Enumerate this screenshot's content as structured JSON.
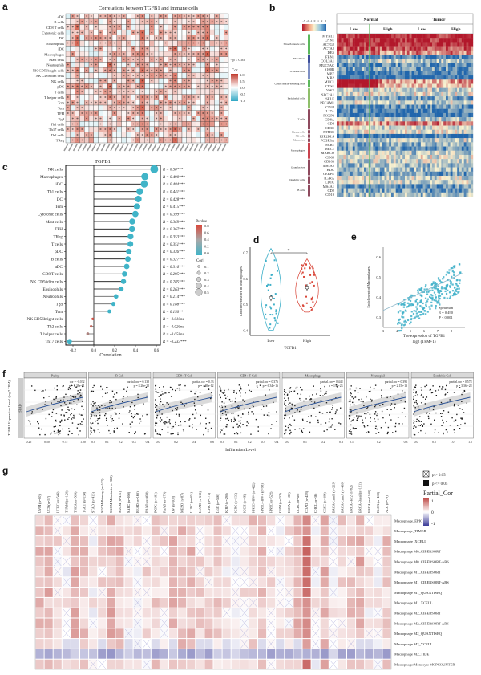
{
  "panel_labels": [
    "a",
    "b",
    "c",
    "d",
    "e",
    "f",
    "g"
  ],
  "colors": {
    "pos": "#d6604d",
    "neg": "#4bb4cc",
    "cyan": "#3fb0c9",
    "red": "#d9473a",
    "navy": "#3b3b98"
  },
  "chart_data": [
    {
      "id": "a",
      "type": "heatmap",
      "title": "Correlations between TGFB1 and immune cells",
      "rows": [
        "aDC",
        "B cells",
        "CD8 T cells",
        "Cytotoxic cells",
        "DC",
        "Eosinophils",
        "iDC",
        "Macrophages",
        "Mast cells",
        "Neutrophils",
        "NK CD56bright cells",
        "NK CD56dim cells",
        "NK cells",
        "pDC",
        "T cells",
        "T helper cells",
        "Tcm",
        "Tem",
        "TFH",
        "Tgd",
        "Th1 cells",
        "Th17 cells",
        "Th2 cells",
        "TReg"
      ],
      "n_columns": 35,
      "legend": {
        "sig": "* p < 0.05",
        "title": "Cor",
        "ticks": [
          "1.0",
          "0.5",
          "0.0",
          "-0.5",
          "-1.0"
        ]
      }
    },
    {
      "id": "b",
      "type": "heatmap",
      "col_groups": [
        "Normal",
        "Tumor"
      ],
      "col_subgroups": [
        "Low",
        "High",
        "Low",
        "High"
      ],
      "genes": [
        "MYH11",
        "CNN1",
        "ACTG2",
        "ACTA2",
        "DES",
        "FBN1",
        "COL3A1",
        "MUC5AC",
        "S100B",
        "MPZ",
        "MBP",
        "MUC1",
        "CKS1",
        "VWF",
        "SLC2A1",
        "SELE",
        "PECAM1",
        "CD34",
        "IL17A",
        "FOXP3",
        "CD8A",
        "CD4",
        "CD3E",
        "PTPRC",
        "KIR2DL4",
        "FCGR3A",
        "NCR1",
        "MRC1",
        "MARCO",
        "CD68",
        "CD163",
        "MS4A2",
        "HDC",
        "CEBPE",
        "IL3RA",
        "CD1C",
        "MS4A1",
        "CD2",
        "CD19"
      ],
      "groups": [
        {
          "name": "Smooth muscle cells",
          "n": 5,
          "color": "#5cb85c"
        },
        {
          "name": "Fibroblasts",
          "n": 2,
          "color": "#3d4f9a"
        },
        {
          "name": "Schwann cells",
          "n": 4,
          "color": "#7e8fc4"
        },
        {
          "name": "Gastric mucus-secreting cells",
          "n": 2,
          "color": "#5cb85c"
        },
        {
          "name": "Endothelial cells",
          "n": 5,
          "color": "#8fbf6b"
        },
        {
          "name": "T cells",
          "n": 5,
          "color": "#8e4a5e"
        },
        {
          "name": "Plasma cells",
          "n": 1,
          "color": "#8e4a5e"
        },
        {
          "name": "NK cells",
          "n": 1,
          "color": "#8e4a5e"
        },
        {
          "name": "Monocytes",
          "n": 1,
          "color": "#8e4a5e"
        },
        {
          "name": "Macrophages",
          "n": 4,
          "color": "#c9414d"
        },
        {
          "name": "Granulocytes",
          "n": 4,
          "color": "#8e4a5e"
        },
        {
          "name": "Dendritic cells",
          "n": 2,
          "color": "#8e4a5e"
        },
        {
          "name": "B cells",
          "n": 3,
          "color": "#8e4a5e"
        }
      ],
      "legend_ticks": [
        "-3",
        "-2",
        "-1",
        "0",
        "1",
        "2",
        "3"
      ]
    },
    {
      "id": "c",
      "type": "scatter",
      "subtype": "lollipop",
      "title": "TGFB1",
      "xlabel": "Correlation",
      "xlim": [
        -0.25,
        0.62
      ],
      "xticks": [
        "-0.2",
        "0.0",
        "0.2",
        "0.4",
        "0.6"
      ],
      "cells": [
        "NK cells",
        "Macrophages",
        "iDC",
        "Th1 cells",
        "DC",
        "Tem",
        "Cytotoxic cells",
        "Mast cells",
        "TFH",
        "TReg",
        "T cells",
        "pDC",
        "B cells",
        "aDC",
        "CD8 T cells",
        "NK CD56dim cells",
        "Eosinophils",
        "Neutrophils",
        "Tgd",
        "Tcm",
        "NK CD56bright cells",
        "Th2 cells",
        "T helper cells",
        "Th17 cells"
      ],
      "values": [
        0.58,
        0.49,
        0.484,
        0.441,
        0.428,
        0.415,
        0.399,
        0.369,
        0.367,
        0.353,
        0.351,
        0.336,
        0.327,
        0.316,
        0.295,
        0.285,
        0.263,
        0.214,
        0.188,
        0.15,
        -0.01,
        -0.026,
        -0.058,
        -0.233
      ],
      "pvalues": [
        0,
        0,
        0,
        0,
        0,
        0,
        0,
        0,
        0,
        0,
        0,
        0,
        0,
        0,
        0,
        0,
        0,
        0,
        0,
        0.01,
        0.85,
        0.6,
        0.28,
        0
      ],
      "r_labels": [
        "R = 0.58***",
        "R = 0.490***",
        "R = 0.484***",
        "R = 0.441***",
        "R = 0.428***",
        "R = 0.415***",
        "R = 0.399***",
        "R = 0.369***",
        "R = 0.367***",
        "R = 0.353***",
        "R = 0.351***",
        "R = 0.336***",
        "R = 0.327***",
        "R = 0.316***",
        "R = 0.295***",
        "R = 0.285***",
        "R = 0.263***",
        "R = 0.214***",
        "R = 0.188***",
        "R = 0.150**",
        "R = -0.010ns",
        "R = -0.026ns",
        "R = -0.058ns",
        "R = -0.233***"
      ],
      "legend_p": {
        "title": "Pvalue",
        "ticks": [
          "0.8",
          "0.6",
          "0.4",
          "0.2",
          "0.0"
        ]
      },
      "legend_size": {
        "title": "|Cor|",
        "ticks": [
          "0.1",
          "0.2",
          "0.3",
          "0.4",
          "0.5"
        ]
      }
    },
    {
      "id": "d",
      "type": "scatter",
      "subtype": "violin",
      "ylabel": "Enrichment score of Macrophages",
      "xlabel": "TGFB1",
      "categories": [
        "Low",
        "High"
      ],
      "yticks": [
        "0.4",
        "0.5",
        "0.6",
        "0.7"
      ],
      "ylim": [
        0.38,
        0.72
      ],
      "means": [
        0.525,
        0.565
      ],
      "sig": "*"
    },
    {
      "id": "e",
      "type": "scatter",
      "ylabel": "Enrichment of Macrophages",
      "xlabel": "The expression of TGFB1",
      "xlabel2": "log2 (TPM+1)",
      "xticks": [
        "3",
        "4",
        "5",
        "6",
        "7",
        "8"
      ],
      "yticks": [
        "0.3",
        "0.4",
        "0.5",
        "0.6"
      ],
      "xlim": [
        3,
        9
      ],
      "ylim": [
        0.25,
        0.65
      ],
      "stats": [
        "Spearman",
        "R = 0.490",
        "P < 0.001"
      ]
    },
    {
      "id": "f",
      "type": "scatter",
      "strip": "STAD",
      "ylabel": "TGFB1 Expression Level (log2 TPM)",
      "xlabel": "Infiltration Level",
      "panels": [
        {
          "name": "Purity",
          "stat1": "cor = -0.032",
          "stat2": "p = 5.38e-01",
          "xticks": [
            "0.25",
            "0.50",
            "0.75",
            "1.00"
          ]
        },
        {
          "name": "B Cell",
          "stat1": "partial.cor = 0.138",
          "stat2": "p = 8.20e-22",
          "xticks": [
            "0.0",
            "0.1",
            "0.2",
            "0.3",
            "0.4"
          ]
        },
        {
          "name": "CD8+ T Cell",
          "stat1": "partial.cor = 0.33",
          "stat2": "p = 4.80e-12",
          "xticks": [
            "0.0",
            "0.2",
            "0.4",
            "0.6"
          ]
        },
        {
          "name": "CD4+ T Cell",
          "stat1": "partial.cor = 0.376",
          "stat2": "p = 6.34e-16",
          "xticks": [
            "0.0",
            "0.1",
            "0.2",
            "0.3",
            "0.4"
          ]
        },
        {
          "name": "Macrophage",
          "stat1": "partial.cor = 0.448",
          "stat2": "p = 1.2e-23",
          "xticks": [
            "0.0",
            "0.1",
            "0.2",
            "0.3"
          ]
        },
        {
          "name": "Neutrophil",
          "stat1": "partial.cor = 0.391",
          "stat2": "p = 2.15e-13",
          "xticks": [
            "0.1",
            "0.2",
            "0.3"
          ]
        },
        {
          "name": "Dendritic Cell",
          "stat1": "partial.cor = 0.578",
          "stat2": "p = 3.36e-28",
          "xticks": [
            "0.0",
            "0.5",
            "1.0",
            "1.5"
          ]
        }
      ]
    },
    {
      "id": "g",
      "type": "heatmap",
      "columns": [
        "UVM (n=80)",
        "UCS (n=57)",
        "UCEC (n=545)",
        "THYM (n=120)",
        "THCA (n=509)",
        "TGCT (n=150)",
        "STAD (n=415)",
        "SKCM-Primary (n=103)",
        "SKCM-Metastasis (n=368)",
        "SKCM (n=471)",
        "SARC (n=260)",
        "READ (n=166)",
        "PRAD (n=498)",
        "PCPG (n=181)",
        "PAAD (n=179)",
        "OV (n=303)",
        "MESO (n=87)",
        "LUSC (n=501)",
        "LUAD (n=515)",
        "LIHC (n=371)",
        "LGG (n=516)",
        "KIRP (n=290)",
        "KIRC (n=533)",
        "KICH (n=66)",
        "HNSC-HPV- (n=422)",
        "HNSC-HPV+ (n=98)",
        "HNSC (n=522)",
        "GBM (n=153)",
        "ESCA (n=185)",
        "DLBC (n=48)",
        "COAD (n=458)",
        "CHOL (n=36)",
        "CESC (n=306)",
        "BRCA-LumB (n=219)",
        "BRCA-LumA (n=499)",
        "BRCA-Her2 (n=82)",
        "BRCA-Basal (n=191)",
        "BRCA (n=1100)",
        "BLCA (n=408)",
        "ACC (n=79)"
      ],
      "rows": [
        "Macrophage_EPIC",
        "Macrophage_TIMER",
        "Macrophage_XCELL",
        "Macrophage M0_CIBERSORT",
        "Macrophage M0_CIBERSORT-ABS",
        "Macrophage M1_CIBERSORT",
        "Macrophage M1_CIBERSORT-ABS",
        "Macrophage M1_QUANTISEQ",
        "Macrophage M1_XCELL",
        "Macrophage M2_CIBERSORT",
        "Macrophage M2_CIBERSORT-ABS",
        "Macrophage M2_QUANTISEQ",
        "Macrophage M2_XCELL",
        "Macrophage M2_TIDE",
        "Macrophage/Monocyte MCPCOUNTER"
      ],
      "legend": {
        "ns": "p > 0.05",
        "sig": "p <= 0.05",
        "title": "Partial_Cor",
        "ticks": [
          "1",
          "0",
          "-1"
        ]
      }
    }
  ]
}
